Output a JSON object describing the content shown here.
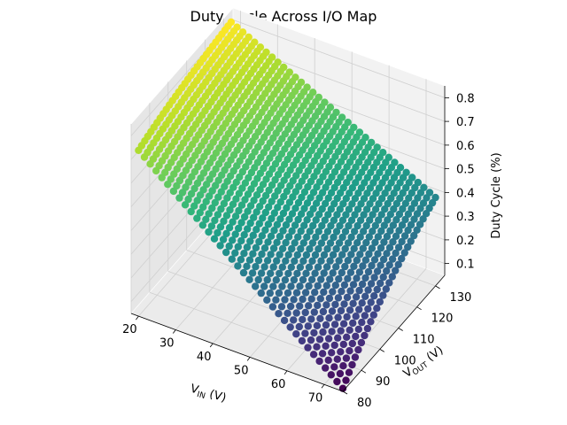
{
  "chart_data": {
    "type": "scatter3d",
    "title": "Duty Cycle Across I/O Map",
    "xlabel": {
      "base": "V",
      "sub": "IN",
      "suffix": " (V)"
    },
    "ylabel": {
      "base": "V",
      "sub": "OUT",
      "suffix": " (V)"
    },
    "zlabel": "Duty Cycle (%)",
    "x_ticks": [
      "20",
      "30",
      "40",
      "50",
      "60",
      "70"
    ],
    "y_ticks": [
      "80",
      "90",
      "100",
      "110",
      "120",
      "130"
    ],
    "z_ticks": [
      "0.1",
      "0.2",
      "0.3",
      "0.4",
      "0.5",
      "0.6",
      "0.7",
      "0.8"
    ],
    "x_range": [
      18,
      75
    ],
    "y_range": [
      80,
      135
    ],
    "z_range": [
      0.05,
      0.85
    ],
    "grid": true,
    "colormap": "viridis",
    "formula": "duty = 1 - V_IN / V_OUT",
    "vin_min": 20,
    "vin_max": 75,
    "vin_steps": 36,
    "vout_min": 80,
    "vout_max": 130,
    "vout_steps": 31
  }
}
